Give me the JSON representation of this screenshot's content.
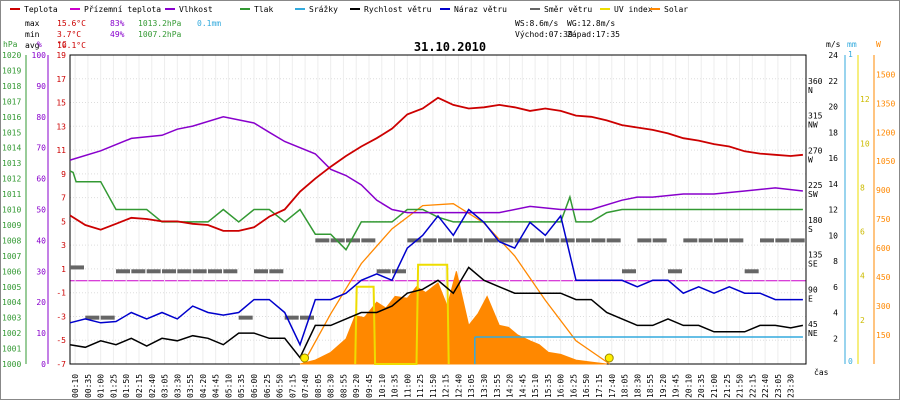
{
  "chart_data": {
    "type": "line",
    "title": "31.10.2010",
    "legend": [
      {
        "name": "Teplota",
        "color": "#cc0000"
      },
      {
        "name": "Přízemní teplota",
        "color": "#cc00cc"
      },
      {
        "name": "Vlhkost",
        "color": "#8800cc"
      },
      {
        "name": "Tlak",
        "color": "#339933"
      },
      {
        "name": "Srážky",
        "color": "#33aadd"
      },
      {
        "name": "Rychlost větru",
        "color": "#000000"
      },
      {
        "name": "Náraz větru",
        "color": "#0000cc"
      },
      {
        "name": "Směr větru",
        "color": "#666666"
      },
      {
        "name": "UV index",
        "color": "#eedd00"
      },
      {
        "name": "Solar",
        "color": "#ff8800"
      }
    ],
    "stats": {
      "max": {
        "label": "max",
        "temp": "15.6°C",
        "hum": "83%",
        "press": "1013.2hPa",
        "rain": "0.1mm"
      },
      "min": {
        "label": "min",
        "temp": "3.7°C",
        "hum": "49%",
        "press": "1007.2hPa"
      },
      "avg": {
        "label": "avg",
        "temp": "10.1°C"
      }
    },
    "wind_info": {
      "ws": "WS:8.6m/s",
      "wg": "WG:12.8m/s",
      "sunrise": "Východ:07:39",
      "sunset": "Západ:17:35"
    },
    "axis_units": {
      "hpa": "hPa",
      "pct": "%",
      "temp": "°C",
      "ms": "m/s",
      "mm": "mm",
      "w": "W",
      "time": "čas"
    },
    "axes": {
      "temp": {
        "ticks": [
          "19",
          "17",
          "15",
          "13",
          "11",
          "9",
          "7",
          "5",
          "3",
          "1",
          "-1",
          "-3",
          "-5",
          "-7"
        ],
        "range": [
          -7,
          19
        ]
      },
      "pressure": {
        "ticks": [
          "1020",
          "1019",
          "1018",
          "1017",
          "1016",
          "1015",
          "1014",
          "1013",
          "1012",
          "1011",
          "1010",
          "1009",
          "1008",
          "1007",
          "1006",
          "1005",
          "1004",
          "1003",
          "1002",
          "1001",
          "1000"
        ],
        "range": [
          1000,
          1020
        ]
      },
      "humidity": {
        "ticks": [
          "100",
          "90",
          "80",
          "70",
          "60",
          "50",
          "40",
          "30",
          "20",
          "10",
          "0"
        ],
        "range": [
          0,
          100
        ]
      },
      "wind_speed": {
        "ticks": [
          "24",
          "22",
          "20",
          "18",
          "16",
          "14",
          "12",
          "10",
          "8",
          "6",
          "4",
          "2"
        ],
        "range": [
          0,
          24
        ]
      },
      "rain": {
        "ticks": [
          "0",
          "1"
        ]
      },
      "uv": {
        "ticks": [
          "12",
          "10",
          "8",
          "6",
          "4",
          "2"
        ]
      },
      "solar": {
        "ticks": [
          "1500",
          "1350",
          "1200",
          "1050",
          "900",
          "750",
          "600",
          "450",
          "300",
          "150"
        ],
        "range": [
          0,
          1600
        ]
      },
      "direction": {
        "ticks": [
          {
            "deg": "360",
            "dir": "N"
          },
          {
            "deg": "315",
            "dir": "NW"
          },
          {
            "deg": "270",
            "dir": "W"
          },
          {
            "deg": "225",
            "dir": "SW"
          },
          {
            "deg": "180",
            "dir": "S"
          },
          {
            "deg": "135",
            "dir": "SE"
          },
          {
            "deg": "90",
            "dir": "E"
          },
          {
            "deg": "45",
            "dir": "NE"
          }
        ]
      },
      "x_ticks": [
        "00:10",
        "00:35",
        "01:00",
        "01:25",
        "01:50",
        "02:15",
        "02:40",
        "03:05",
        "03:30",
        "03:55",
        "04:20",
        "04:45",
        "05:10",
        "05:35",
        "06:00",
        "06:25",
        "06:50",
        "07:15",
        "07:40",
        "08:05",
        "08:30",
        "08:55",
        "09:20",
        "09:45",
        "10:10",
        "10:35",
        "11:00",
        "11:25",
        "11:50",
        "12:15",
        "12:40",
        "13:05",
        "13:30",
        "13:55",
        "14:20",
        "14:45",
        "15:10",
        "15:35",
        "16:00",
        "16:25",
        "16:50",
        "17:15",
        "17:40",
        "18:05",
        "18:30",
        "18:55",
        "19:20",
        "19:45",
        "20:10",
        "20:35",
        "21:00",
        "21:25",
        "21:50",
        "22:15",
        "22:40",
        "23:05",
        "23:30"
      ]
    },
    "series": [
      {
        "name": "Teplota",
        "hours": [
          0,
          0.5,
          1,
          1.5,
          2,
          2.5,
          3,
          3.5,
          4,
          4.5,
          5,
          5.5,
          6,
          6.5,
          7,
          7.5,
          8,
          8.5,
          9,
          9.5,
          10,
          10.5,
          11,
          11.5,
          12,
          12.5,
          13,
          13.5,
          14,
          14.5,
          15,
          15.5,
          16,
          16.5,
          17,
          17.5,
          18,
          18.5,
          19,
          19.5,
          20,
          20.5,
          21,
          21.5,
          22,
          22.5,
          23,
          23.5,
          23.9
        ],
        "values": [
          5.5,
          4.7,
          4.3,
          4.8,
          5.3,
          5.2,
          5.0,
          5.0,
          4.8,
          4.7,
          4.2,
          4.2,
          4.5,
          5.4,
          6.0,
          7.5,
          8.6,
          9.6,
          10.5,
          11.3,
          12.0,
          12.8,
          14.0,
          14.5,
          15.4,
          14.8,
          14.5,
          14.6,
          14.8,
          14.6,
          14.3,
          14.5,
          14.3,
          13.9,
          13.8,
          13.5,
          13.1,
          12.9,
          12.7,
          12.4,
          12.0,
          11.8,
          11.5,
          11.3,
          10.9,
          10.7,
          10.6,
          10.5,
          10.6
        ]
      },
      {
        "name": "Vlhkost",
        "hours": [
          0,
          1,
          2,
          3,
          3.5,
          4,
          5,
          6,
          6.5,
          7,
          8,
          8.5,
          9,
          9.5,
          10,
          10.5,
          11,
          11.5,
          12,
          13,
          14,
          15,
          16,
          17,
          18,
          18.5,
          19,
          20,
          21,
          22,
          23,
          23.9
        ],
        "values": [
          66,
          69,
          73,
          74,
          76,
          77,
          80,
          78,
          75,
          72,
          68,
          63,
          61,
          58,
          53,
          50,
          49,
          49,
          49,
          49,
          49,
          51,
          50,
          50,
          53,
          54,
          54,
          55,
          55,
          56,
          57,
          56
        ]
      },
      {
        "name": "Tlak",
        "hours": [
          0,
          0.1,
          0.2,
          0.5,
          1,
          1.5,
          2,
          2.5,
          3,
          3.5,
          4,
          4.5,
          5,
          5.5,
          6,
          6.5,
          7,
          7.5,
          8,
          8.5,
          9,
          9.5,
          10,
          10.5,
          11,
          11.5,
          12,
          12.5,
          13,
          13.5,
          14,
          14.5,
          15,
          15.5,
          16,
          16.3,
          16.5,
          17,
          17.5,
          18,
          18.5,
          19,
          19.5,
          20,
          20.5,
          21,
          22,
          23,
          23.9
        ],
        "values": [
          1012.5,
          1012.4,
          1011.8,
          1011.8,
          1011.8,
          1010.0,
          1010.0,
          1010.0,
          1009.2,
          1009.2,
          1009.2,
          1009.2,
          1010.0,
          1009.2,
          1010.0,
          1010.0,
          1009.2,
          1010.0,
          1008.4,
          1008.4,
          1007.4,
          1009.2,
          1009.2,
          1009.2,
          1010.0,
          1010.0,
          1009.5,
          1009.2,
          1009.2,
          1009.2,
          1009.2,
          1009.2,
          1009.2,
          1009.2,
          1009.2,
          1010.8,
          1009.2,
          1009.2,
          1009.8,
          1010.0,
          1010.0,
          1010.0,
          1010.0,
          1010.0,
          1010.0,
          1010.0,
          1010.0,
          1010.0,
          1010.0
        ]
      },
      {
        "name": "Rychlost větru",
        "hours": [
          0,
          0.5,
          1,
          1.5,
          2,
          2.5,
          3,
          3.5,
          4,
          4.5,
          5,
          5.5,
          6,
          6.5,
          7,
          7.5,
          8,
          8.5,
          9,
          9.5,
          10,
          10.5,
          11,
          11.5,
          12,
          12.5,
          13,
          13.5,
          14,
          14.5,
          15,
          15.5,
          16,
          16.5,
          17,
          17.5,
          18,
          18.5,
          19,
          19.5,
          20,
          20.5,
          21,
          21.5,
          22,
          22.5,
          23,
          23.5,
          23.9
        ],
        "values": [
          1.5,
          1.3,
          1.8,
          1.5,
          2.0,
          1.4,
          2.0,
          1.8,
          2.2,
          2.0,
          1.5,
          2.4,
          2.4,
          2.0,
          2.0,
          0.5,
          3.0,
          3.0,
          3.5,
          4.0,
          4.0,
          4.5,
          5.5,
          5.8,
          6.5,
          5.5,
          7.5,
          6.5,
          6.0,
          5.5,
          5.5,
          5.5,
          5.5,
          5.0,
          5.0,
          4.0,
          3.5,
          3.0,
          3.0,
          3.5,
          3.0,
          3.0,
          2.5,
          2.5,
          2.5,
          3.0,
          3.0,
          2.8,
          3.0
        ]
      },
      {
        "name": "Náraz větru",
        "hours": [
          0,
          0.5,
          1,
          1.5,
          2,
          2.5,
          3,
          3.5,
          4,
          4.5,
          5,
          5.5,
          6,
          6.5,
          7,
          7.5,
          8,
          8.5,
          9,
          9.5,
          10,
          10.5,
          11,
          11.5,
          12,
          12.5,
          13,
          13.5,
          14,
          14.5,
          15,
          15.5,
          16,
          16.5,
          17,
          17.5,
          18,
          18.5,
          19,
          19.5,
          20,
          20.5,
          21,
          21.5,
          22,
          22.5,
          23,
          23.5,
          23.9
        ],
        "values": [
          3.2,
          3.5,
          3.2,
          3.3,
          4.0,
          3.5,
          4.0,
          3.5,
          4.5,
          4.0,
          3.8,
          4.0,
          5.0,
          5.0,
          4.0,
          1.5,
          5.0,
          5.0,
          5.5,
          6.5,
          7.0,
          6.5,
          9.0,
          10.0,
          11.5,
          10.0,
          12.0,
          11.0,
          9.5,
          9.0,
          11.0,
          10.0,
          11.5,
          6.5,
          6.5,
          6.5,
          6.5,
          6.0,
          6.5,
          6.5,
          5.5,
          6.0,
          5.5,
          6.0,
          5.5,
          5.5,
          5.0,
          5.0,
          5.0
        ]
      },
      {
        "name": "Směr větru",
        "hours": [
          0,
          0.5,
          1,
          1.5,
          2,
          2.5,
          3,
          3.5,
          4,
          4.5,
          5,
          5.5,
          6,
          6.5,
          7,
          7.5,
          8,
          8.5,
          9,
          9.5,
          10,
          10.5,
          11,
          11.5,
          12,
          12.5,
          13,
          13.5,
          14,
          14.5,
          15,
          15.5,
          16,
          16.5,
          17,
          17.5,
          18,
          18.5,
          19,
          19.5,
          20,
          20.5,
          21,
          21.5,
          22,
          22.5,
          23,
          23.5
        ],
        "values": [
          125,
          60,
          60,
          120,
          120,
          120,
          120,
          120,
          120,
          120,
          120,
          60,
          120,
          120,
          60,
          60,
          160,
          160,
          160,
          160,
          120,
          120,
          160,
          160,
          160,
          160,
          160,
          160,
          160,
          160,
          160,
          160,
          160,
          160,
          160,
          160,
          120,
          160,
          160,
          120,
          160,
          160,
          160,
          160,
          120,
          160,
          160,
          160
        ]
      },
      {
        "name": "Solar",
        "hours": [
          7.5,
          8,
          8.5,
          9,
          9.3,
          9.6,
          10,
          10.3,
          10.6,
          11,
          11.3,
          11.6,
          12,
          12.3,
          12.6,
          13,
          13.3,
          13.6,
          14,
          14.3,
          14.6,
          15,
          15.3,
          15.6,
          16,
          16.5,
          17,
          17.5
        ],
        "values": [
          0,
          20,
          60,
          130,
          250,
          240,
          320,
          290,
          350,
          340,
          400,
          370,
          420,
          300,
          480,
          200,
          260,
          350,
          200,
          190,
          150,
          120,
          100,
          60,
          50,
          20,
          10,
          0
        ]
      },
      {
        "name": "Solar max",
        "hours": [
          7.6,
          8.5,
          9.5,
          10.5,
          11.5,
          12.5,
          13.5,
          14.5,
          15.5,
          16.5,
          17.6
        ],
        "values": [
          0,
          260,
          520,
          700,
          820,
          830,
          730,
          560,
          330,
          120,
          0
        ]
      },
      {
        "name": "UV index",
        "hours": [
          9.3,
          9.35,
          9.9,
          9.95,
          11.3,
          11.35,
          12.3,
          12.35
        ],
        "values": [
          0,
          3.5,
          3.5,
          0,
          0,
          4.5,
          4.5,
          0
        ]
      },
      {
        "name": "Srážky",
        "hours": [
          13.2,
          23.9
        ],
        "values": [
          0.1,
          0.1
        ]
      }
    ]
  }
}
